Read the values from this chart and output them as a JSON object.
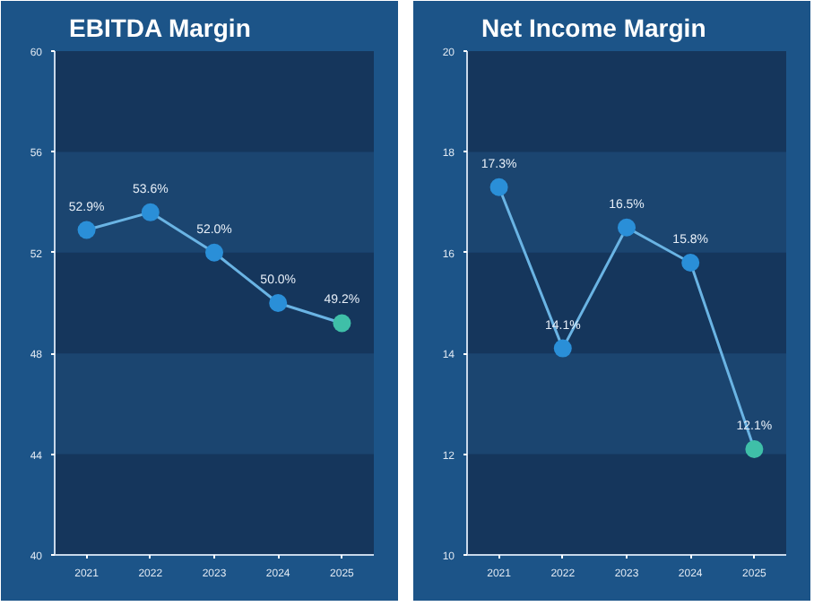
{
  "chart_data": [
    {
      "type": "line",
      "title": "EBITDA Margin",
      "categories": [
        "2021",
        "2022",
        "2023",
        "2024",
        "2025"
      ],
      "series": [
        {
          "color": "#6ab4e4",
          "colors": [
            "#2a8fd8",
            "#2a8fd8",
            "#2a8fd8",
            "#2a8fd8",
            "#3fbfa8"
          ],
          "values": [
            52.9,
            53.6,
            52.0,
            50.0,
            49.2
          ],
          "value_labels": [
            "52.9%",
            "53.6%",
            "52.0%",
            "50.0%",
            "49.2%"
          ]
        }
      ],
      "bands": [
        {
          "axis": "y",
          "from": 44,
          "to": 48,
          "color": "#1b4570"
        },
        {
          "axis": "y",
          "from": 52,
          "to": 56,
          "color": "#1b4570"
        }
      ],
      "ylim": [
        40,
        60
      ],
      "yticks": [
        40,
        44,
        48,
        52,
        56,
        60
      ],
      "marker": "circle",
      "line_style": "solid"
    },
    {
      "type": "line",
      "title": "Net Income Margin",
      "categories": [
        "2021",
        "2022",
        "2023",
        "2024",
        "2025"
      ],
      "series": [
        {
          "color": "#6ab4e4",
          "colors": [
            "#2a8fd8",
            "#2a8fd8",
            "#2a8fd8",
            "#2a8fd8",
            "#3fbfa8"
          ],
          "values": [
            17.3,
            14.1,
            16.5,
            15.8,
            12.1
          ],
          "value_labels": [
            "17.3%",
            "14.1%",
            "16.5%",
            "15.8%",
            "12.1%"
          ]
        }
      ],
      "bands": [
        {
          "axis": "y",
          "from": 12,
          "to": 14,
          "color": "#1b4570"
        },
        {
          "axis": "y",
          "from": 16,
          "to": 18,
          "color": "#1b4570"
        }
      ],
      "ylim": [
        10,
        20
      ],
      "yticks": [
        10,
        12,
        14,
        16,
        18,
        20
      ],
      "marker": "circle",
      "line_style": "solid"
    }
  ]
}
